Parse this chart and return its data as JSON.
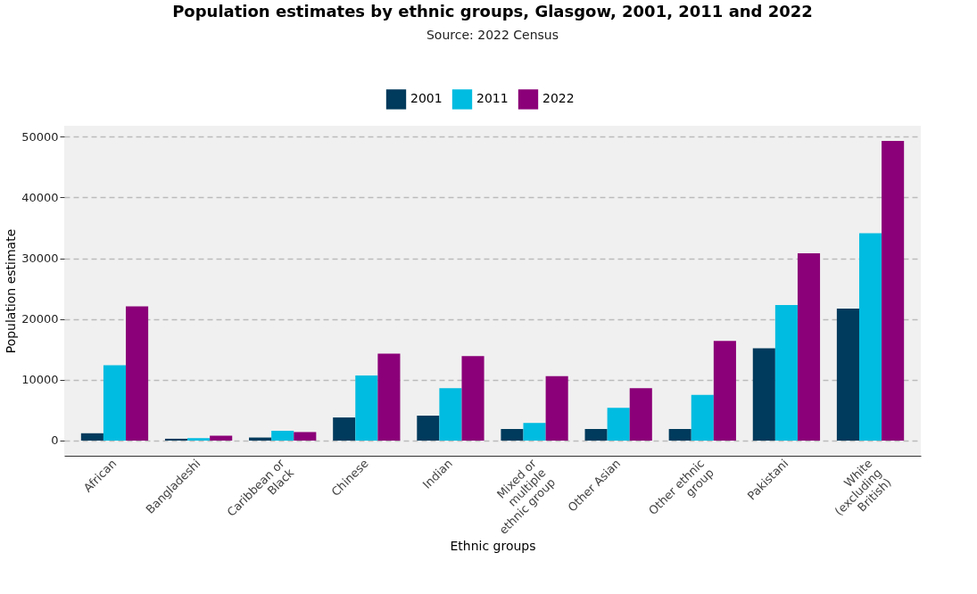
{
  "chart_data": {
    "type": "bar",
    "title": "Population estimates by ethnic groups, Glasgow, 2001, 2011 and 2022",
    "subtitle": "Source: 2022 Census",
    "xlabel": "Ethnic groups",
    "ylabel": "Population estimate",
    "categories": [
      "African",
      "Bangladeshi",
      "Caribbean or Black",
      "Chinese",
      "Indian",
      "Mixed or multiple ethnic group",
      "Other Asian",
      "Other ethnic group",
      "Pakistani",
      "White (excluding British)"
    ],
    "series": [
      {
        "name": "2001",
        "color": "#003a5c",
        "values": [
          1200,
          300,
          500,
          3800,
          4100,
          1900,
          1900,
          1900,
          15200,
          21700
        ]
      },
      {
        "name": "2011",
        "color": "#00bce0",
        "values": [
          12400,
          400,
          1600,
          10700,
          8600,
          2900,
          5400,
          7500,
          22300,
          34100
        ]
      },
      {
        "name": "2022",
        "color": "#8b0078",
        "values": [
          22100,
          800,
          1400,
          14300,
          13900,
          10600,
          8600,
          16400,
          30800,
          49300
        ]
      }
    ],
    "ylim": [
      -2500,
      51800
    ],
    "yticks": [
      0,
      10000,
      20000,
      30000,
      40000,
      50000
    ],
    "grid": "y",
    "legend": "top"
  }
}
